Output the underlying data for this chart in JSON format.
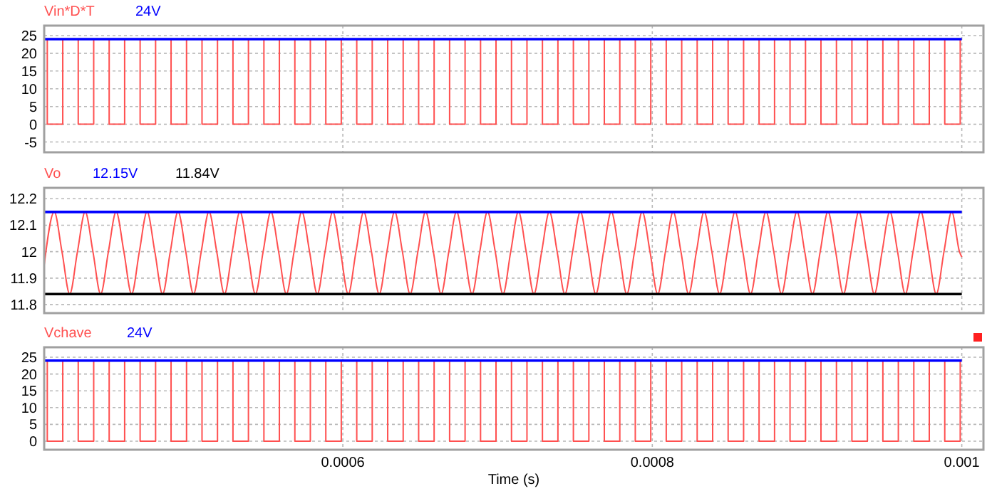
{
  "chart_data": [
    {
      "type": "step",
      "xlim": [
        0.000407,
        0.001014
      ],
      "ylim": [
        -7.9,
        27.8
      ],
      "xticks": [
        0.0006,
        0.0008,
        0.001
      ],
      "yticks": [
        -5,
        0,
        5,
        10,
        15,
        20,
        25
      ],
      "grid": true,
      "legend": "top left",
      "tick_labels": "y",
      "series": [
        {
          "name": "Vin*D*T",
          "color": "#ff5050",
          "x": [
            0.000407,
            0.000409,
            0.000419,
            0.000429,
            0.000439,
            0.000449,
            0.000459,
            0.000469,
            0.000479,
            0.000489,
            0.000499,
            0.000509,
            0.000519,
            0.000529,
            0.000539,
            0.000549,
            0.000559,
            0.000569,
            0.000579,
            0.000589,
            0.000599,
            0.000609,
            0.000619,
            0.000629,
            0.000639,
            0.000649,
            0.000659,
            0.000669,
            0.000679,
            0.000689,
            0.000699,
            0.000709,
            0.000719,
            0.000729,
            0.000739,
            0.000749,
            0.000759,
            0.000769,
            0.000779,
            0.000789,
            0.000799,
            0.000809,
            0.000819,
            0.000829,
            0.000839,
            0.000849,
            0.000859,
            0.000869,
            0.000879,
            0.000889,
            0.000899,
            0.000909,
            0.000919,
            0.000929,
            0.000939,
            0.000949,
            0.000959,
            0.000969,
            0.000979,
            0.000989,
            0.000999,
            0.001
          ],
          "values": [
            24,
            0,
            24,
            0,
            24,
            0,
            24,
            0,
            24,
            0,
            24,
            0,
            24,
            0,
            24,
            0,
            24,
            0,
            24,
            0,
            24,
            0,
            24,
            0,
            24,
            0,
            24,
            0,
            24,
            0,
            24,
            0,
            24,
            0,
            24,
            0,
            24,
            0,
            24,
            0,
            24,
            0,
            24,
            0,
            24,
            0,
            24,
            0,
            24,
            0,
            24,
            0,
            24,
            0,
            24,
            0,
            24,
            0,
            24,
            0,
            24,
            24
          ]
        },
        {
          "name": "24V",
          "type": "line",
          "color": "#0000ff",
          "x": [
            0.000407,
            0.001
          ],
          "values": [
            24,
            24
          ]
        }
      ]
    },
    {
      "type": "line",
      "xlim": [
        0.000407,
        0.001014
      ],
      "ylim": [
        11.768,
        12.241
      ],
      "xticks": [
        0.0006,
        0.0008,
        0.001
      ],
      "yticks": [
        11.8,
        11.9,
        12,
        12.1,
        12.2
      ],
      "grid": true,
      "legend": "top left",
      "tick_labels": "y",
      "series": [
        {
          "name": "Vo",
          "color": "#ff5050",
          "x": [
            0.000407,
            0.0004135,
            0.0004185,
            0.0004235,
            0.0004285,
            0.0004335,
            0.0004385,
            0.0004435,
            0.0004485,
            0.0004535,
            0.0004585,
            0.0004635,
            0.0004685,
            0.0004735,
            0.0004785,
            0.0004835,
            0.0004885,
            0.0004935,
            0.0004985,
            0.0005035,
            0.0005085,
            0.0005135,
            0.0005185,
            0.0005235,
            0.0005285,
            0.0005335,
            0.0005385,
            0.0005435,
            0.0005485,
            0.0005535,
            0.0005585,
            0.0005635,
            0.0005685,
            0.0005735,
            0.0005785,
            0.0005835,
            0.0005885,
            0.0005935,
            0.0005985,
            0.0006035,
            0.0006085,
            0.0006135,
            0.0006185,
            0.0006235,
            0.0006285,
            0.0006335,
            0.0006385,
            0.0006435,
            0.0006485,
            0.0006535,
            0.0006585,
            0.0006635,
            0.0006685,
            0.0006735,
            0.0006785,
            0.0006835,
            0.0006885,
            0.0006935,
            0.0006985,
            0.0007035,
            0.0007085,
            0.0007135,
            0.0007185,
            0.0007235,
            0.0007285,
            0.0007335,
            0.0007385,
            0.0007435,
            0.0007485,
            0.0007535,
            0.0007585,
            0.0007635,
            0.0007685,
            0.0007735,
            0.0007785,
            0.0007835,
            0.0007885,
            0.0007935,
            0.0007985,
            0.0008035,
            0.0008085,
            0.0008135,
            0.0008185,
            0.0008235,
            0.0008285,
            0.0008335,
            0.0008385,
            0.0008435,
            0.0008485,
            0.0008535,
            0.0008585,
            0.0008635,
            0.0008685,
            0.0008735,
            0.0008785,
            0.0008835,
            0.0008885,
            0.0008935,
            0.0008985,
            0.0009035,
            0.0009085,
            0.0009135,
            0.0009185,
            0.0009235,
            0.0009285,
            0.0009335,
            0.0009385,
            0.0009435,
            0.0009485,
            0.0009535,
            0.0009585,
            0.0009635,
            0.0009685,
            0.0009735,
            0.0009785,
            0.0009835,
            0.0009885,
            0.0009935,
            0.0009985,
            0.001
          ],
          "values": [
            11.95,
            12.15,
            12,
            11.84,
            12,
            12.15,
            12,
            11.84,
            12,
            12.15,
            12,
            11.84,
            12,
            12.15,
            12,
            11.84,
            12,
            12.15,
            12,
            11.84,
            12,
            12.15,
            12,
            11.84,
            12,
            12.15,
            12,
            11.84,
            12,
            12.15,
            12,
            11.84,
            12,
            12.15,
            12,
            11.84,
            12,
            12.15,
            12,
            11.84,
            12,
            12.15,
            12,
            11.84,
            12,
            12.15,
            12,
            11.84,
            12,
            12.15,
            12,
            11.84,
            12,
            12.15,
            12,
            11.84,
            12,
            12.15,
            12,
            11.84,
            12,
            12.15,
            12,
            11.84,
            12,
            12.15,
            12,
            11.84,
            12,
            12.15,
            12,
            11.84,
            12,
            12.15,
            12,
            11.84,
            12,
            12.15,
            12,
            11.84,
            12,
            12.15,
            12,
            11.84,
            12,
            12.15,
            12,
            11.84,
            12,
            12.15,
            12,
            11.84,
            12,
            12.15,
            12,
            11.84,
            12,
            12.15,
            12,
            11.84,
            12,
            12.15,
            12,
            11.84,
            12,
            12.15,
            12,
            11.84,
            12,
            12.15,
            12,
            11.84,
            12,
            12.15,
            12,
            11.84,
            12,
            12.15,
            12,
            11.98
          ]
        },
        {
          "name": "12.15V",
          "color": "#0000ff",
          "x": [
            0.000407,
            0.001
          ],
          "values": [
            12.15,
            12.15
          ]
        },
        {
          "name": "11.84V",
          "color": "#000000",
          "x": [
            0.000407,
            0.001
          ],
          "values": [
            11.84,
            11.84
          ]
        }
      ]
    },
    {
      "type": "step",
      "xlim": [
        0.000407,
        0.001014
      ],
      "ylim": [
        -2.56,
        27.98
      ],
      "xticks": [
        0.0006,
        0.0008,
        0.001
      ],
      "yticks": [
        0,
        5,
        10,
        15,
        20,
        25
      ],
      "grid": true,
      "legend": "top left",
      "xlabel": "Time (s)",
      "series": [
        {
          "name": "Vchave",
          "color": "#ff5050",
          "x": [
            0.000407,
            0.000409,
            0.000419,
            0.000429,
            0.000439,
            0.000449,
            0.000459,
            0.000469,
            0.000479,
            0.000489,
            0.000499,
            0.000509,
            0.000519,
            0.000529,
            0.000539,
            0.000549,
            0.000559,
            0.000569,
            0.000579,
            0.000589,
            0.000599,
            0.000609,
            0.000619,
            0.000629,
            0.000639,
            0.000649,
            0.000659,
            0.000669,
            0.000679,
            0.000689,
            0.000699,
            0.000709,
            0.000719,
            0.000729,
            0.000739,
            0.000749,
            0.000759,
            0.000769,
            0.000779,
            0.000789,
            0.000799,
            0.000809,
            0.000819,
            0.000829,
            0.000839,
            0.000849,
            0.000859,
            0.000869,
            0.000879,
            0.000889,
            0.000899,
            0.000909,
            0.000919,
            0.000929,
            0.000939,
            0.000949,
            0.000959,
            0.000969,
            0.000979,
            0.000989,
            0.000999,
            0.001
          ],
          "values": [
            24,
            0,
            24,
            0,
            24,
            0,
            24,
            0,
            24,
            0,
            24,
            0,
            24,
            0,
            24,
            0,
            24,
            0,
            24,
            0,
            24,
            0,
            24,
            0,
            24,
            0,
            24,
            0,
            24,
            0,
            24,
            0,
            24,
            0,
            24,
            0,
            24,
            0,
            24,
            0,
            24,
            0,
            24,
            0,
            24,
            0,
            24,
            0,
            24,
            0,
            24,
            0,
            24,
            0,
            24,
            0,
            24,
            0,
            24,
            0,
            24,
            24
          ]
        },
        {
          "name": "24V",
          "type": "line",
          "color": "#0000ff",
          "x": [
            0.000407,
            0.001
          ],
          "values": [
            24,
            24
          ]
        }
      ]
    }
  ]
}
